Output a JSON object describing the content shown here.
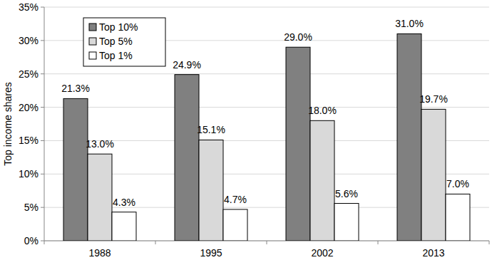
{
  "chart_data": {
    "type": "bar",
    "y_label": "Top income shares",
    "categories": [
      "1988",
      "1995",
      "2002",
      "2013"
    ],
    "series": [
      {
        "name": "Top 10%",
        "color": "#808080",
        "values": [
          21.3,
          24.9,
          29.0,
          31.0
        ],
        "value_labels": [
          "21.3%",
          "24.9%",
          "29.0%",
          "31.0%"
        ]
      },
      {
        "name": "Top 5%",
        "color": "#d9d9d9",
        "values": [
          13.0,
          15.1,
          18.0,
          19.7
        ],
        "value_labels": [
          "13.0%",
          "15.1%",
          "18.0%",
          "19.7%"
        ]
      },
      {
        "name": "Top 1%",
        "color": "#ffffff",
        "values": [
          4.3,
          4.7,
          5.6,
          7.0
        ],
        "value_labels": [
          "4.3%",
          "4.7%",
          "5.6%",
          "7.0%"
        ]
      }
    ],
    "ylim": [
      0,
      35
    ],
    "yticks": [
      {
        "value": 0,
        "label": "0%"
      },
      {
        "value": 5,
        "label": "5%"
      },
      {
        "value": 10,
        "label": "10%"
      },
      {
        "value": 15,
        "label": "15%"
      },
      {
        "value": 20,
        "label": "20%"
      },
      {
        "value": 25,
        "label": "25%"
      },
      {
        "value": 30,
        "label": "30%"
      },
      {
        "value": 35,
        "label": "35%"
      }
    ],
    "grid": true,
    "legend": "upper left",
    "data_labels": true
  }
}
